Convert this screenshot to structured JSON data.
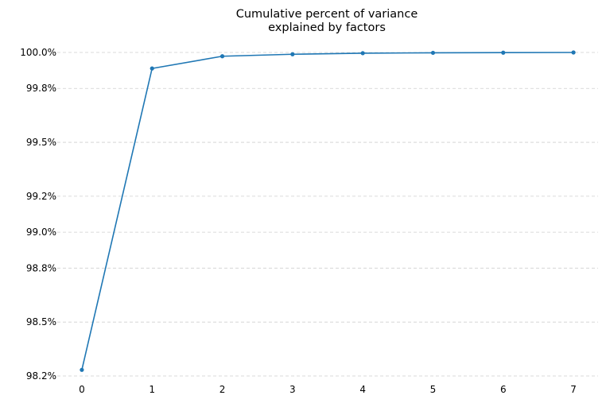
{
  "chart_data": {
    "type": "line",
    "title_lines": [
      "Cumulative percent of variance",
      "explained by factors"
    ],
    "xlabel": "",
    "ylabel": "",
    "x": [
      0,
      1,
      2,
      3,
      4,
      5,
      6,
      7
    ],
    "series": [
      {
        "values": [
          98.234,
          99.911,
          99.979,
          99.99,
          99.996,
          99.998,
          99.999,
          100.0
        ]
      }
    ],
    "x_ticks": [
      "0",
      "1",
      "2",
      "3",
      "4",
      "5",
      "6",
      "7"
    ],
    "y_ticks": [
      98.2,
      98.5,
      98.8,
      99.0,
      99.2,
      99.5,
      99.8,
      100.0
    ],
    "y_tick_labels": [
      "98.2%",
      "98.5%",
      "98.8%",
      "99.0%",
      "99.2%",
      "99.5%",
      "99.8%",
      "100.0%"
    ],
    "xlim": [
      -0.35,
      7.35
    ],
    "ylim": [
      98.2,
      100.0
    ],
    "grid": "horizontal-dashed",
    "colors": {
      "line": "#1f77b4",
      "grid": "#cfcfcf",
      "text": "#000000"
    }
  }
}
